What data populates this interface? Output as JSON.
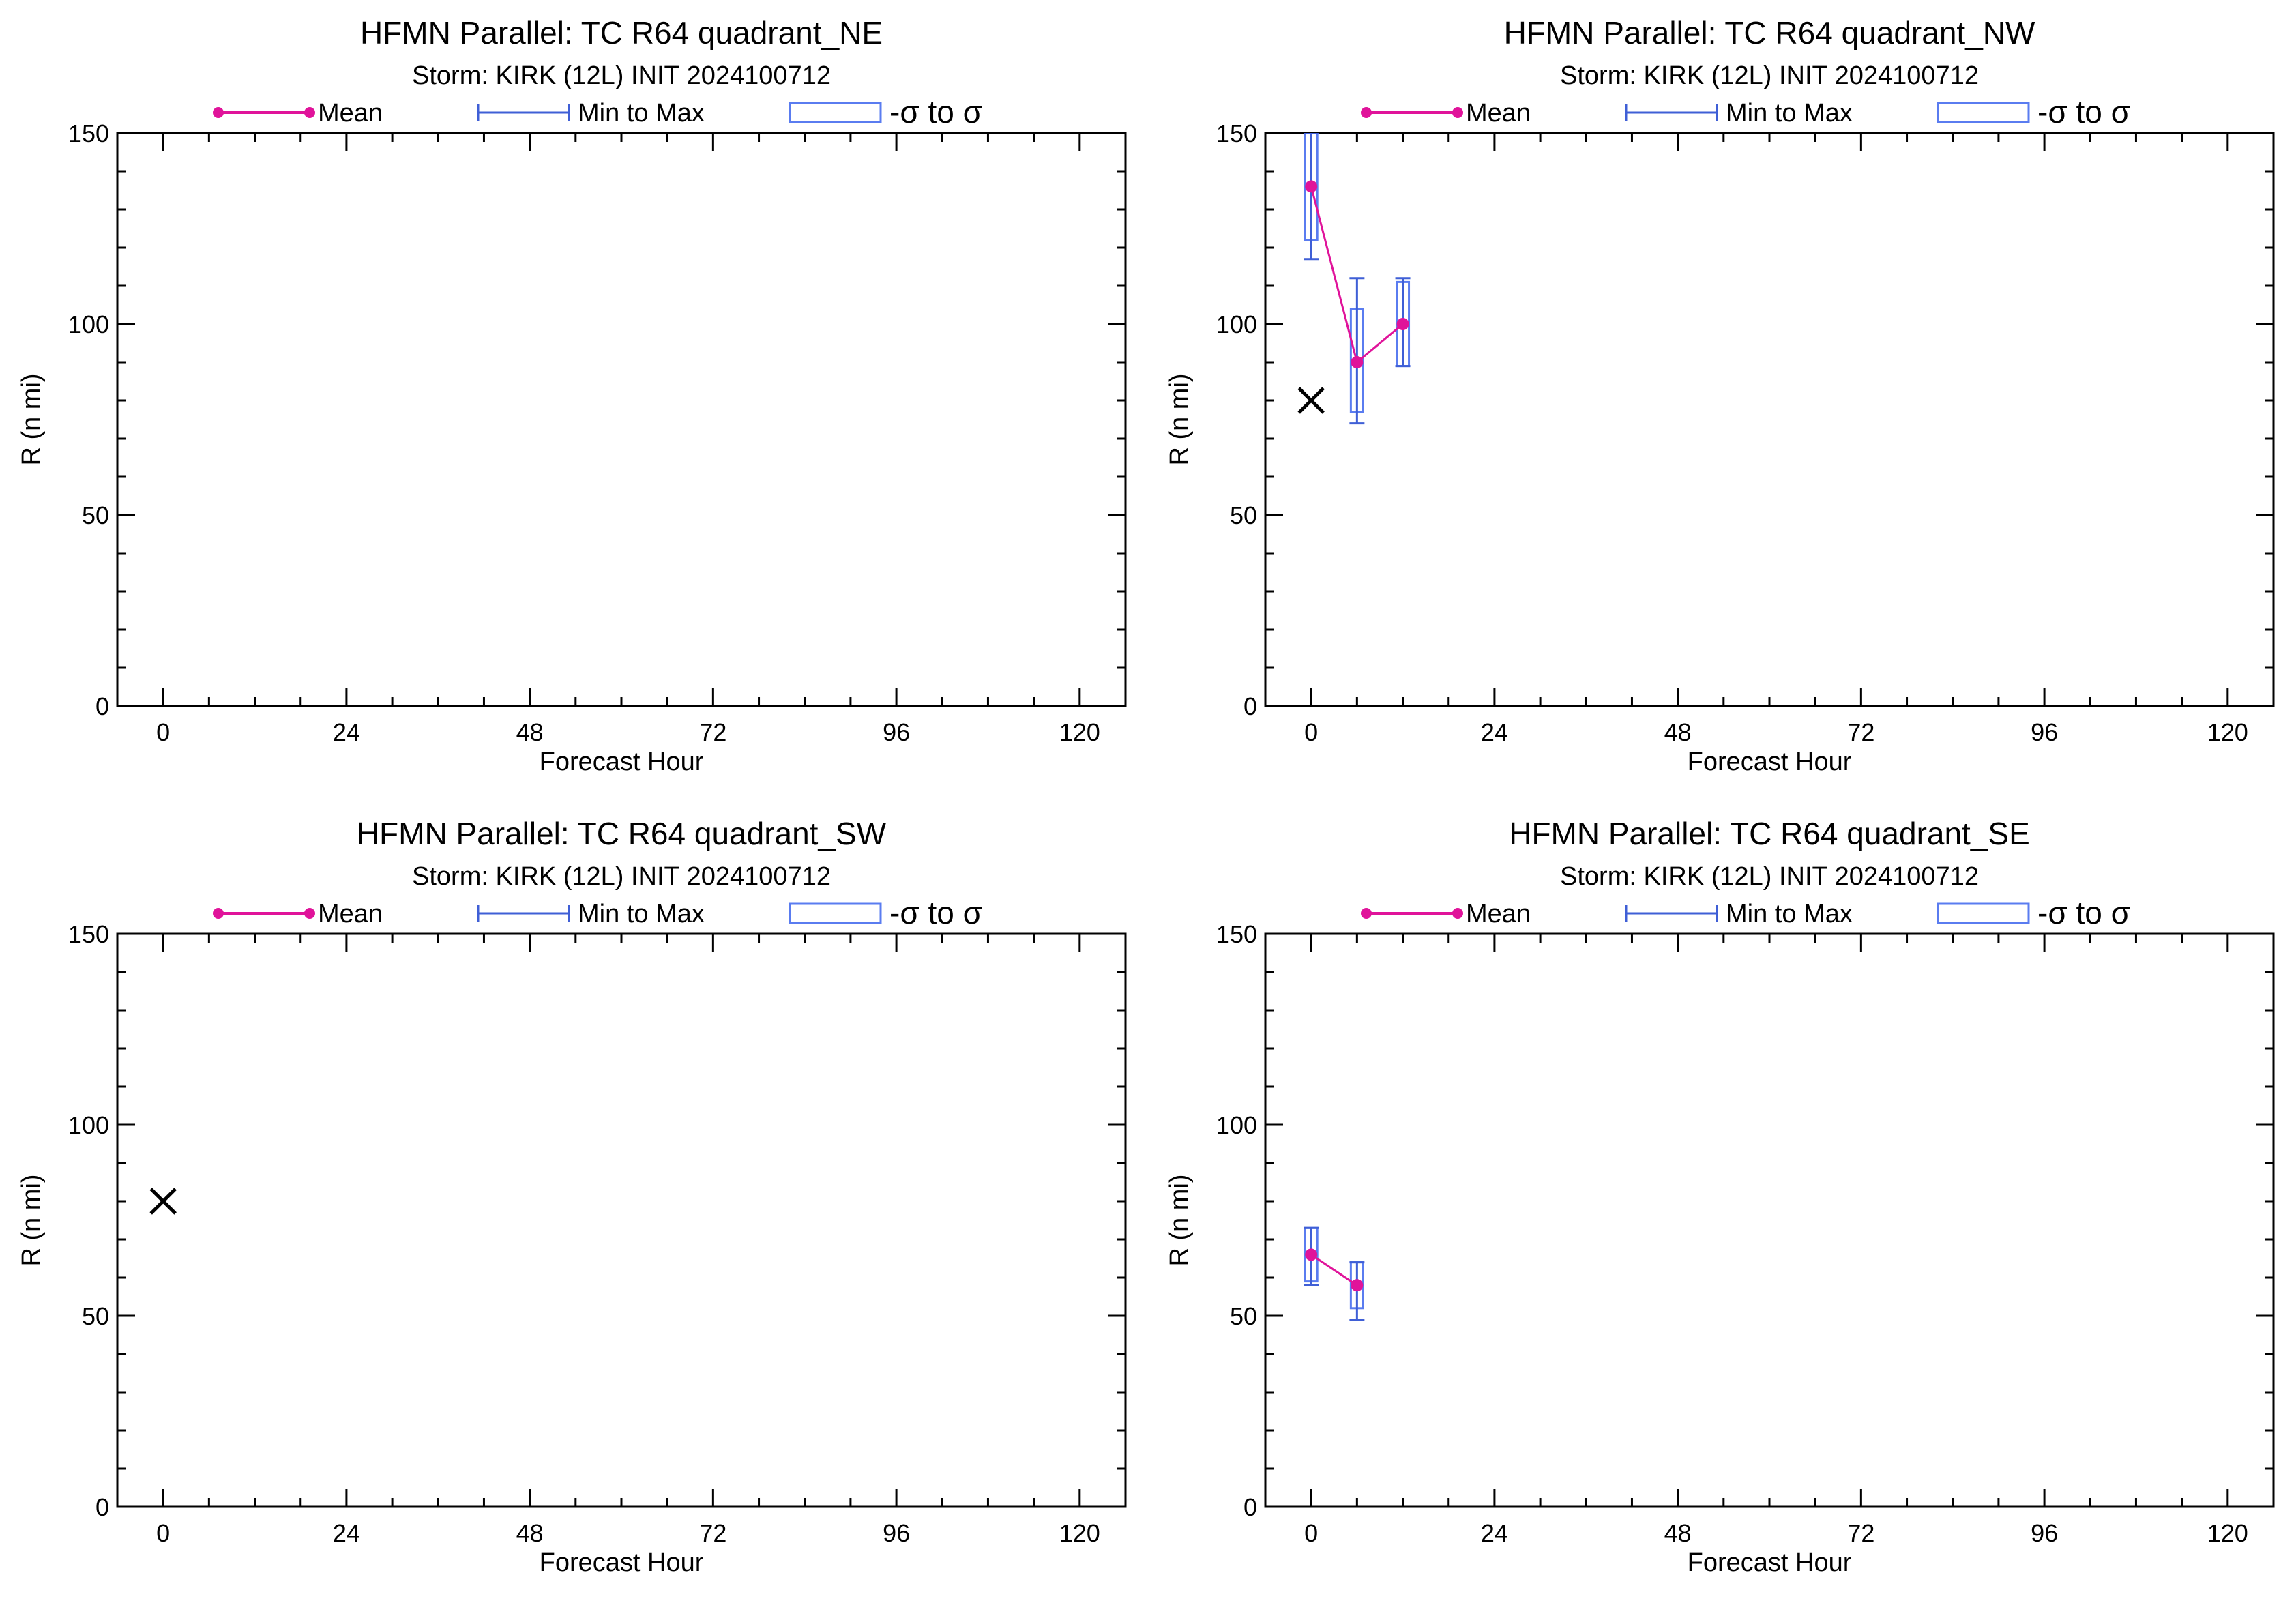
{
  "colors": {
    "mean": "#e0139a",
    "range": "#3f5fd6",
    "box": "#5a7cf0",
    "axis": "#000000",
    "obs": "#000000"
  },
  "legend": {
    "mean_label": "Mean",
    "range_label": "Min to Max",
    "sigma_label": "-σ to σ"
  },
  "obs_marker": "x-mark",
  "chart_data": [
    {
      "id": "ne",
      "type": "box",
      "title": "HFMN Parallel: TC  R64 quadrant_NE",
      "subtitle": "Storm: KIRK (12L) INIT 2024100712",
      "xlabel": "Forecast Hour",
      "ylabel": "R (n mi)",
      "xlim": [
        -6,
        126
      ],
      "ylim": [
        0,
        150
      ],
      "xticks": [
        0,
        24,
        48,
        72,
        96,
        120
      ],
      "yticks": [
        0,
        50,
        100,
        150
      ],
      "grid": false,
      "legend_position": "top",
      "mean": [],
      "boxes": [],
      "observed": []
    },
    {
      "id": "nw",
      "type": "box",
      "title": "HFMN Parallel: TC  R64 quadrant_NW",
      "subtitle": "Storm: KIRK (12L) INIT 2024100712",
      "xlabel": "Forecast Hour",
      "ylabel": "R (n mi)",
      "xlim": [
        -6,
        126
      ],
      "ylim": [
        0,
        150
      ],
      "xticks": [
        0,
        24,
        48,
        72,
        96,
        120
      ],
      "yticks": [
        0,
        50,
        100,
        150
      ],
      "grid": false,
      "legend_position": "top",
      "mean": [
        {
          "x": 0,
          "y": 136
        },
        {
          "x": 6,
          "y": 90
        },
        {
          "x": 12,
          "y": 100
        }
      ],
      "boxes": [
        {
          "x": 0,
          "min": 117,
          "max": 150,
          "lo": 122,
          "hi": 150
        },
        {
          "x": 6,
          "min": 74,
          "max": 112,
          "lo": 77,
          "hi": 104
        },
        {
          "x": 12,
          "min": 89,
          "max": 112,
          "lo": 89,
          "hi": 111
        }
      ],
      "observed": [
        {
          "x": 0,
          "y": 80
        }
      ]
    },
    {
      "id": "sw",
      "type": "box",
      "title": "HFMN Parallel: TC  R64 quadrant_SW",
      "subtitle": "Storm: KIRK (12L) INIT 2024100712",
      "xlabel": "Forecast Hour",
      "ylabel": "R (n mi)",
      "xlim": [
        -6,
        126
      ],
      "ylim": [
        0,
        150
      ],
      "xticks": [
        0,
        24,
        48,
        72,
        96,
        120
      ],
      "yticks": [
        0,
        50,
        100,
        150
      ],
      "grid": false,
      "legend_position": "top",
      "mean": [],
      "boxes": [],
      "observed": [
        {
          "x": 0,
          "y": 80
        }
      ]
    },
    {
      "id": "se",
      "type": "box",
      "title": "HFMN Parallel: TC  R64 quadrant_SE",
      "subtitle": "Storm: KIRK (12L) INIT 2024100712",
      "xlabel": "Forecast Hour",
      "ylabel": "R (n mi)",
      "xlim": [
        -6,
        126
      ],
      "ylim": [
        0,
        150
      ],
      "xticks": [
        0,
        24,
        48,
        72,
        96,
        120
      ],
      "yticks": [
        0,
        50,
        100,
        150
      ],
      "grid": false,
      "legend_position": "top",
      "mean": [
        {
          "x": 0,
          "y": 66
        },
        {
          "x": 6,
          "y": 58
        }
      ],
      "boxes": [
        {
          "x": 0,
          "min": 58,
          "max": 73,
          "lo": 59,
          "hi": 73
        },
        {
          "x": 6,
          "min": 49,
          "max": 64,
          "lo": 52,
          "hi": 64
        }
      ],
      "observed": []
    }
  ]
}
